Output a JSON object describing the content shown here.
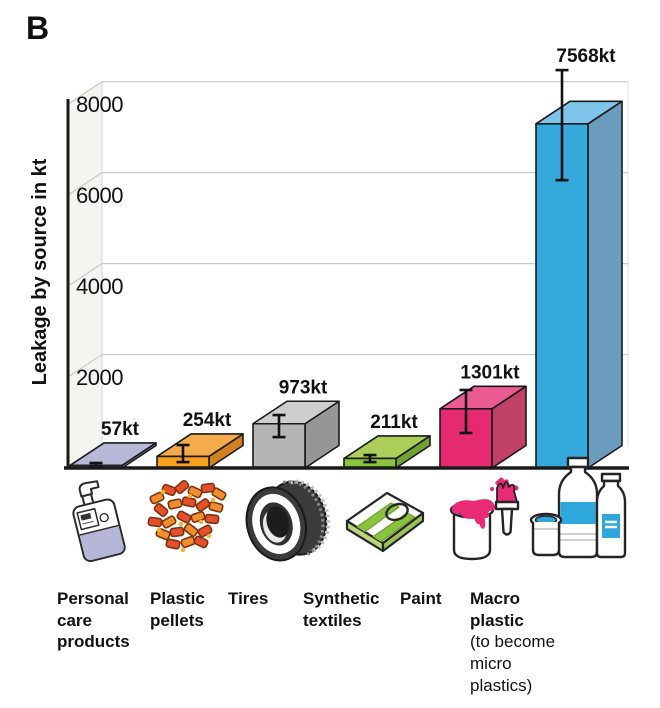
{
  "panel_label": "B",
  "chart_data": {
    "type": "bar",
    "title": "",
    "ylabel": "Leakage by source in kt",
    "xlabel": "",
    "ylim": [
      0,
      8600
    ],
    "yticks": [
      2000,
      4000,
      6000,
      8000
    ],
    "ytick_labels": [
      "2000",
      "4000",
      "6000",
      "8000"
    ],
    "grid": true,
    "projection": "3d-oblique",
    "legend": "none",
    "bars": [
      {
        "category": "Personal care products",
        "value": 57,
        "value_label": "57kt",
        "error_low": 30,
        "error_high": 110,
        "colors": {
          "front": "#a3a4ca",
          "top": "#b7b8d8",
          "side": "#8d8eb9"
        }
      },
      {
        "category": "Plastic pellets",
        "value": 254,
        "value_label": "254kt",
        "error_low": 130,
        "error_high": 505,
        "colors": {
          "front": "#f6a11d",
          "top": "#f3ab4b",
          "side": "#d2811f"
        }
      },
      {
        "category": "Tires",
        "value": 973,
        "value_label": "973kt",
        "error_low": 680,
        "error_high": 1165,
        "colors": {
          "front": "#b5b5b5",
          "top": "#cecece",
          "side": "#969696"
        }
      },
      {
        "category": "Synthetic textiles",
        "value": 211,
        "value_label": "211kt",
        "error_low": 130,
        "error_high": 285,
        "colors": {
          "front": "#8ac43e",
          "top": "#aace58",
          "side": "#71a135"
        }
      },
      {
        "category": "Paint",
        "value": 1301,
        "value_label": "1301kt",
        "error_low": 770,
        "error_high": 1715,
        "colors": {
          "front": "#e62a70",
          "top": "#ea5c91",
          "side": "#c04067"
        }
      },
      {
        "category": "Macro plastic (to become micro plastics)",
        "value": 7568,
        "value_label": "7568kt",
        "error_low": 6330,
        "error_high": 8750,
        "colors": {
          "front": "#35a8dc",
          "top": "#7fc5e9",
          "side": "#6b9cbe"
        }
      }
    ],
    "axis_color": "#1a1a1a",
    "grid_color": "#c9c9c9",
    "wall_fill": "#f4f4f1"
  },
  "category_labels": [
    {
      "label": "Personal\ncare\nproducts",
      "note": ""
    },
    {
      "label": "Plastic\npellets",
      "note": ""
    },
    {
      "label": "Tires",
      "note": ""
    },
    {
      "label": "Synthetic\ntextiles",
      "note": ""
    },
    {
      "label": "Paint",
      "note": ""
    },
    {
      "label": "Macro\nplastic",
      "note": "(to become\nmicro\nplastics)"
    }
  ],
  "icons": [
    "personal-care-bottle-icon",
    "plastic-pellets-icon",
    "tire-icon",
    "folded-textile-icon",
    "paint-can-and-brush-icon",
    "plastic-bottles-icon"
  ]
}
